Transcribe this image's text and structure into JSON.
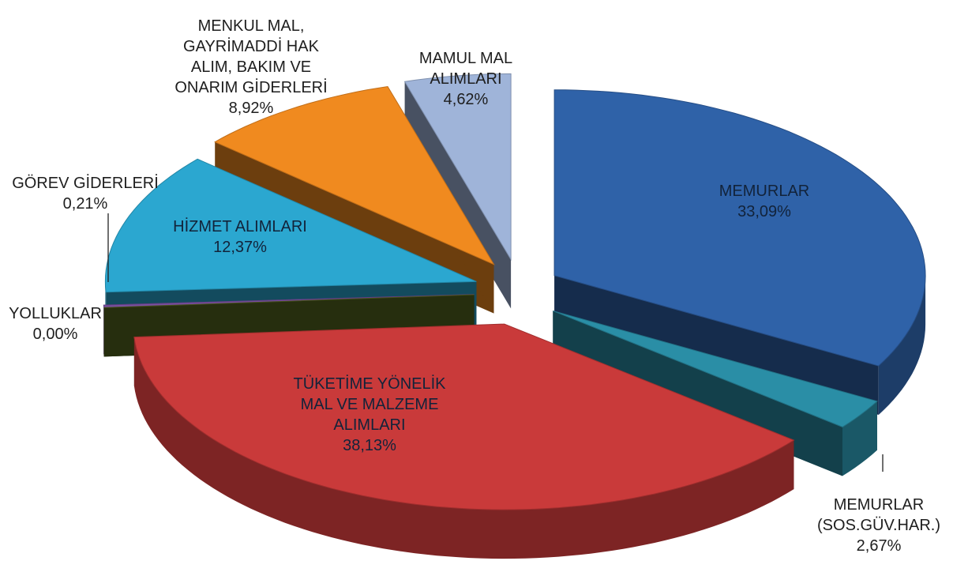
{
  "chart_data": {
    "type": "pie3d",
    "categories": [
      "MEMURLAR",
      "MEMURLAR\n(SOS.GÜV.HAR.)",
      "TÜKETİME YÖNELİK\nMAL VE MALZEME\nALIMLARI",
      "YOLLUKLAR",
      "GÖREV GİDERLERİ",
      "HİZMET ALIMLARI",
      "MENKUL MAL,\nGAYRİMADDİ HAK\nALIM, BAKIM VE\nONARIM GİDERLERİ",
      "MAMUL MAL\nALIMLARI"
    ],
    "values": [
      33.09,
      2.67,
      38.13,
      0.0,
      0.21,
      12.37,
      8.92,
      4.62
    ],
    "value_labels": [
      "33,09%",
      "2,67%",
      "38,13%",
      "0,00%",
      "0,21%",
      "12,37%",
      "8,92%",
      "4,62%"
    ],
    "colors": [
      "#2f62a8",
      "#2a8ea6",
      "#c93a3a",
      "#55661f",
      "#7a4fa0",
      "#2ba7d0",
      "#f08a1f",
      "#9fb4d9"
    ]
  }
}
